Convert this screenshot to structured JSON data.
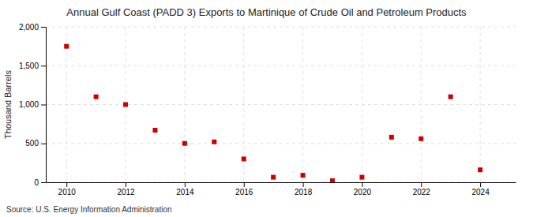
{
  "chart_data": {
    "type": "scatter",
    "title": "Annual Gulf Coast (PADD 3) Exports to Martinique of Crude Oil and Petroleum Products",
    "ylabel": "Thousand Barrels",
    "annotations": [
      "Source: U.S. Energy Information Administration"
    ],
    "x": [
      2010,
      2011,
      2012,
      2013,
      2014,
      2015,
      2016,
      2017,
      2018,
      2019,
      2020,
      2021,
      2022,
      2023,
      2024
    ],
    "values": [
      1750,
      1100,
      1000,
      670,
      500,
      520,
      300,
      65,
      90,
      20,
      65,
      580,
      560,
      1100,
      160
    ],
    "color": "#cc0000",
    "marker": "square",
    "xlim": [
      2009.3,
      2025.2
    ],
    "xticks": [
      2010,
      2012,
      2014,
      2016,
      2018,
      2020,
      2022,
      2024
    ],
    "ylim": [
      0,
      2000
    ],
    "yticks": [
      0,
      500,
      {
        "value": 1000,
        "label": "1,000"
      },
      {
        "value": 1500,
        "label": "1,500"
      },
      {
        "value": 2000,
        "label": "2,000"
      }
    ],
    "grid": true
  }
}
